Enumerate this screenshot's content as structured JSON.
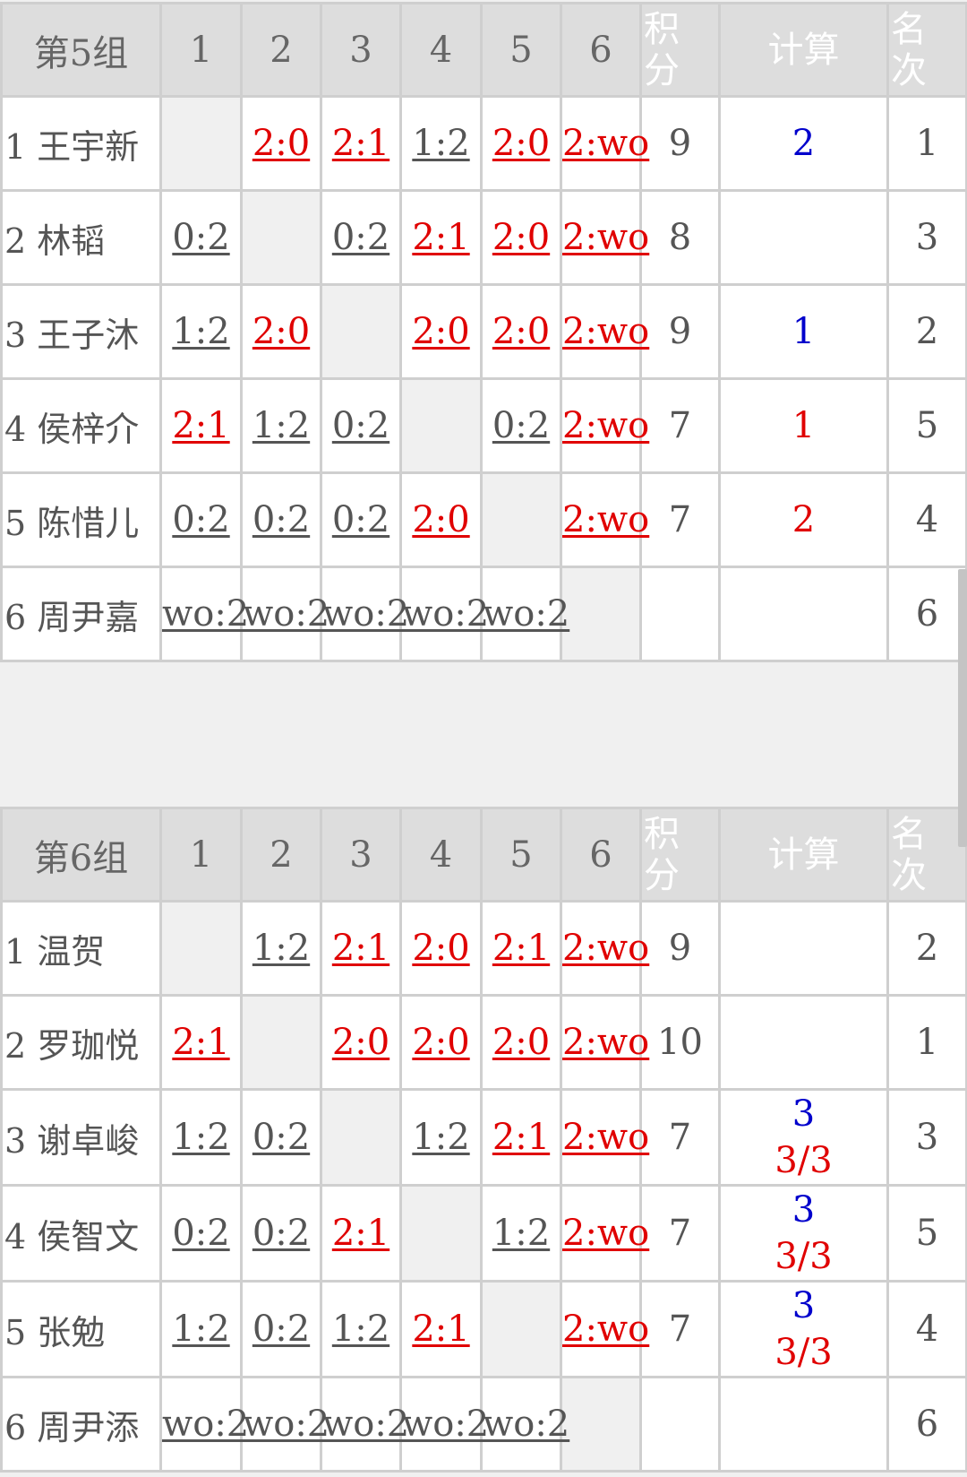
{
  "header": {
    "cols": [
      "1",
      "2",
      "3",
      "4",
      "5",
      "6"
    ],
    "points": "积分",
    "calc": "计算",
    "rank": "名次"
  },
  "groups": [
    {
      "title": "第5组",
      "rows": [
        {
          "name": "1 王宇新",
          "cells": [
            {
              "t": "",
              "c": "self"
            },
            {
              "t": "2:0",
              "c": "w"
            },
            {
              "t": "2:1",
              "c": "w"
            },
            {
              "t": "1:2",
              "c": "l"
            },
            {
              "t": "2:0",
              "c": "w"
            },
            {
              "t": "2:wo",
              "c": "w"
            }
          ],
          "points": "9",
          "calc": [
            {
              "t": "2",
              "c": "blue"
            }
          ],
          "rank": "1",
          "rank_color": "red"
        },
        {
          "name": "2 林韬",
          "cells": [
            {
              "t": "0:2",
              "c": "l"
            },
            {
              "t": "",
              "c": "self"
            },
            {
              "t": "0:2",
              "c": "l"
            },
            {
              "t": "2:1",
              "c": "w"
            },
            {
              "t": "2:0",
              "c": "w"
            },
            {
              "t": "2:wo",
              "c": "w"
            }
          ],
          "points": "8",
          "calc": [],
          "rank": "3",
          "rank_color": "red"
        },
        {
          "name": "3 王子沐",
          "cells": [
            {
              "t": "1:2",
              "c": "l"
            },
            {
              "t": "2:0",
              "c": "w"
            },
            {
              "t": "",
              "c": "self"
            },
            {
              "t": "2:0",
              "c": "w"
            },
            {
              "t": "2:0",
              "c": "w"
            },
            {
              "t": "2:wo",
              "c": "w"
            }
          ],
          "points": "9",
          "calc": [
            {
              "t": "1",
              "c": "blue"
            }
          ],
          "rank": "2",
          "rank_color": "red"
        },
        {
          "name": "4 侯梓介",
          "cells": [
            {
              "t": "2:1",
              "c": "w"
            },
            {
              "t": "1:2",
              "c": "l"
            },
            {
              "t": "0:2",
              "c": "l"
            },
            {
              "t": "",
              "c": "self"
            },
            {
              "t": "0:2",
              "c": "l"
            },
            {
              "t": "2:wo",
              "c": "w"
            }
          ],
          "points": "7",
          "calc": [
            {
              "t": "1",
              "c": "red"
            }
          ],
          "rank": "5",
          "rank_color": "gray"
        },
        {
          "name": "5 陈惜儿",
          "cells": [
            {
              "t": "0:2",
              "c": "l"
            },
            {
              "t": "0:2",
              "c": "l"
            },
            {
              "t": "0:2",
              "c": "l"
            },
            {
              "t": "2:0",
              "c": "w"
            },
            {
              "t": "",
              "c": "self"
            },
            {
              "t": "2:wo",
              "c": "w"
            }
          ],
          "points": "7",
          "calc": [
            {
              "t": "2",
              "c": "red"
            }
          ],
          "rank": "4",
          "rank_color": "red"
        },
        {
          "name": "6 周尹嘉",
          "cells": [
            {
              "t": "wo:2",
              "c": "l"
            },
            {
              "t": "wo:2",
              "c": "l"
            },
            {
              "t": "wo:2",
              "c": "l"
            },
            {
              "t": "wo:2",
              "c": "l"
            },
            {
              "t": "wo:2",
              "c": "l"
            },
            {
              "t": "",
              "c": "self"
            }
          ],
          "points": "",
          "calc": [],
          "rank": "6",
          "rank_color": "gray"
        }
      ]
    },
    {
      "title": "第6组",
      "rows": [
        {
          "name": "1 温贺",
          "cells": [
            {
              "t": "",
              "c": "self"
            },
            {
              "t": "1:2",
              "c": "l"
            },
            {
              "t": "2:1",
              "c": "w"
            },
            {
              "t": "2:0",
              "c": "w"
            },
            {
              "t": "2:1",
              "c": "w"
            },
            {
              "t": "2:wo",
              "c": "w"
            }
          ],
          "points": "9",
          "calc": [],
          "rank": "2",
          "rank_color": "red"
        },
        {
          "name": "2 罗珈悦",
          "cells": [
            {
              "t": "2:1",
              "c": "w"
            },
            {
              "t": "",
              "c": "self"
            },
            {
              "t": "2:0",
              "c": "w"
            },
            {
              "t": "2:0",
              "c": "w"
            },
            {
              "t": "2:0",
              "c": "w"
            },
            {
              "t": "2:wo",
              "c": "w"
            }
          ],
          "points": "10",
          "calc": [],
          "rank": "1",
          "rank_color": "red"
        },
        {
          "name": "3 谢卓峻",
          "cells": [
            {
              "t": "1:2",
              "c": "l"
            },
            {
              "t": "0:2",
              "c": "l"
            },
            {
              "t": "",
              "c": "self"
            },
            {
              "t": "1:2",
              "c": "l"
            },
            {
              "t": "2:1",
              "c": "w"
            },
            {
              "t": "2:wo",
              "c": "w"
            }
          ],
          "points": "7",
          "calc": [
            {
              "t": "3",
              "c": "blue"
            },
            {
              "t": "3/3",
              "c": "red"
            }
          ],
          "rank": "3",
          "rank_color": "red"
        },
        {
          "name": "4 侯智文",
          "cells": [
            {
              "t": "0:2",
              "c": "l"
            },
            {
              "t": "0:2",
              "c": "l"
            },
            {
              "t": "2:1",
              "c": "w"
            },
            {
              "t": "",
              "c": "self"
            },
            {
              "t": "1:2",
              "c": "l"
            },
            {
              "t": "2:wo",
              "c": "w"
            }
          ],
          "points": "7",
          "calc": [
            {
              "t": "3",
              "c": "blue"
            },
            {
              "t": "3/3",
              "c": "red"
            }
          ],
          "rank": "5",
          "rank_color": "gray"
        },
        {
          "name": "5 张勉",
          "cells": [
            {
              "t": "1:2",
              "c": "l"
            },
            {
              "t": "0:2",
              "c": "l"
            },
            {
              "t": "1:2",
              "c": "l"
            },
            {
              "t": "2:1",
              "c": "w"
            },
            {
              "t": "",
              "c": "self"
            },
            {
              "t": "2:wo",
              "c": "w"
            }
          ],
          "points": "7",
          "calc": [
            {
              "t": "3",
              "c": "blue"
            },
            {
              "t": "3/3",
              "c": "red"
            }
          ],
          "rank": "4",
          "rank_color": "red"
        },
        {
          "name": "6 周尹添",
          "cells": [
            {
              "t": "wo:2",
              "c": "l"
            },
            {
              "t": "wo:2",
              "c": "l"
            },
            {
              "t": "wo:2",
              "c": "l"
            },
            {
              "t": "wo:2",
              "c": "l"
            },
            {
              "t": "wo:2",
              "c": "l"
            },
            {
              "t": "",
              "c": "self"
            }
          ],
          "points": "",
          "calc": [],
          "rank": "6",
          "rank_color": "gray"
        }
      ]
    }
  ],
  "colors": {
    "win": "#e00000",
    "loss": "#555555",
    "calc_blue": "#0000cc",
    "header_bg": "#dddddd",
    "border": "#cfcfcf"
  }
}
